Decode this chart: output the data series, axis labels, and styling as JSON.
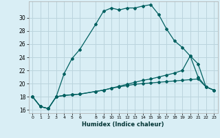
{
  "xlabel": "Humidex (Indice chaleur)",
  "background_color": "#d9eef5",
  "grid_color": "#bbd4dd",
  "line_color": "#006060",
  "x_ticks": [
    0,
    1,
    2,
    3,
    4,
    5,
    6,
    8,
    9,
    10,
    11,
    12,
    13,
    14,
    15,
    16,
    17,
    18,
    19,
    20,
    21,
    22,
    23
  ],
  "ylim": [
    15.5,
    32.5
  ],
  "xlim": [
    -0.5,
    23.5
  ],
  "yticks": [
    16,
    18,
    20,
    22,
    24,
    26,
    28,
    30
  ],
  "series1_x": [
    0,
    1,
    2,
    3,
    4,
    5,
    6,
    8,
    9,
    10,
    11,
    12,
    13,
    14,
    15,
    16,
    17,
    18,
    19,
    20,
    21,
    22,
    23
  ],
  "series1_y": [
    18.0,
    16.5,
    16.2,
    18.0,
    21.5,
    23.8,
    25.2,
    29.0,
    31.0,
    31.5,
    31.2,
    31.5,
    31.5,
    31.8,
    32.0,
    30.5,
    28.3,
    26.5,
    25.5,
    24.2,
    23.0,
    19.5,
    19.0
  ],
  "series2_x": [
    0,
    1,
    2,
    3,
    4,
    5,
    6,
    8,
    9,
    10,
    11,
    12,
    13,
    14,
    15,
    16,
    17,
    18,
    19,
    20,
    21,
    22,
    23
  ],
  "series2_y": [
    18.0,
    16.5,
    16.2,
    18.0,
    18.2,
    18.3,
    18.4,
    18.8,
    19.0,
    19.3,
    19.6,
    19.9,
    20.2,
    20.5,
    20.7,
    21.0,
    21.3,
    21.6,
    22.0,
    24.2,
    21.0,
    19.5,
    19.0
  ],
  "series3_x": [
    0,
    1,
    2,
    3,
    4,
    5,
    6,
    8,
    9,
    10,
    11,
    12,
    13,
    14,
    15,
    16,
    17,
    18,
    19,
    20,
    21,
    22,
    23
  ],
  "series3_y": [
    18.0,
    16.5,
    16.2,
    18.0,
    18.2,
    18.3,
    18.4,
    18.8,
    19.0,
    19.3,
    19.5,
    19.7,
    19.9,
    20.0,
    20.1,
    20.2,
    20.3,
    20.4,
    20.5,
    20.6,
    20.7,
    19.5,
    19.0
  ]
}
